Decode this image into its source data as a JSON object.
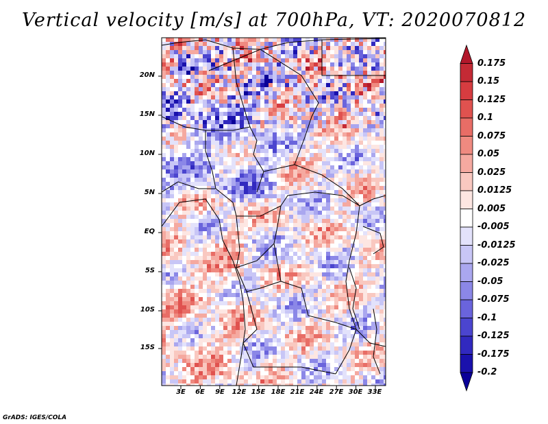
{
  "title": "Vertical velocity [m/s] at 700hPa, VT: 2020070812",
  "footer": "GrADS: IGES/COLA",
  "map": {
    "region": "Central Africa",
    "variable": "vertical velocity",
    "level": "700hPa",
    "valid_time": "2020070812",
    "lon_labels": [
      "3E",
      "6E",
      "9E",
      "12E",
      "15E",
      "18E",
      "21E",
      "24E",
      "27E",
      "30E",
      "33E"
    ],
    "lat_labels": [
      "20N",
      "15N",
      "10N",
      "5N",
      "EQ",
      "5S",
      "10S",
      "15S"
    ]
  },
  "colorbar": {
    "labels": [
      "0.175",
      "0.15",
      "0.125",
      "0.1",
      "0.075",
      "0.05",
      "0.025",
      "0.0125",
      "0.005",
      "-0.005",
      "-0.0125",
      "-0.025",
      "-0.05",
      "-0.075",
      "-0.1",
      "-0.125",
      "-0.175",
      "-0.2"
    ],
    "colors": [
      "#b2182b",
      "#c42a35",
      "#d63c40",
      "#e0524f",
      "#e86d66",
      "#ef8a80",
      "#f5a9a0",
      "#f9c8c0",
      "#fde6e2",
      "#ffffff",
      "#e3e2fb",
      "#c8c6f6",
      "#aaa7ef",
      "#8b87e7",
      "#6a64dc",
      "#4b45cf",
      "#3129bf",
      "#1a11ac",
      "#0a0098"
    ]
  },
  "colors": {
    "land_border": "#000000",
    "background": "#ffffff"
  }
}
